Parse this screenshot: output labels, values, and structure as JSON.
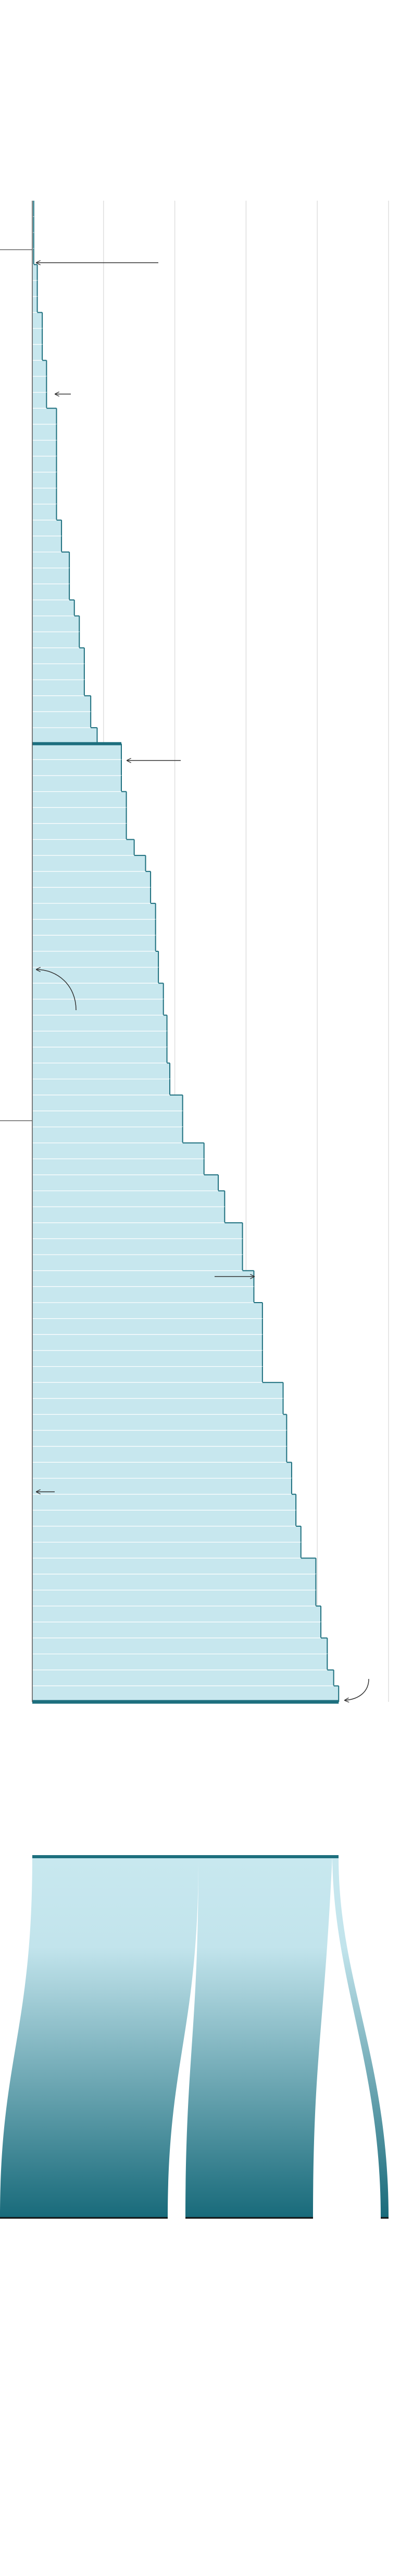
{
  "chart_data": {
    "type": "bar",
    "orientation": "horizontal",
    "values": [
      0.02,
      0.02,
      0.02,
      0.02,
      0.07,
      0.07,
      0.07,
      0.14,
      0.14,
      0.14,
      0.2,
      0.2,
      0.2,
      0.34,
      0.34,
      0.34,
      0.34,
      0.34,
      0.34,
      0.34,
      0.41,
      0.41,
      0.52,
      0.52,
      0.52,
      0.59,
      0.66,
      0.66,
      0.73,
      0.73,
      0.73,
      0.82,
      0.82,
      0.91,
      1.25,
      1.25,
      1.25,
      1.32,
      1.32,
      1.32,
      1.43,
      1.59,
      1.66,
      1.66,
      1.73,
      1.73,
      1.73,
      1.77,
      1.77,
      1.84,
      1.84,
      1.89,
      1.89,
      1.89,
      1.93,
      1.93,
      2.11,
      2.11,
      2.11,
      2.41,
      2.41,
      2.61,
      2.7,
      2.7,
      2.95,
      2.95,
      2.95,
      3.11,
      3.11,
      3.23,
      3.23,
      3.23,
      3.23,
      3.23,
      3.52,
      3.52,
      3.57,
      3.57,
      3.57,
      3.64,
      3.64,
      3.7,
      3.7,
      3.77,
      3.77,
      3.98,
      3.98,
      3.98,
      4.05,
      4.05,
      4.14,
      4.14,
      4.23,
      4.3
    ],
    "color": "#c7e7ee",
    "edge_color": "#1d6f7e",
    "xlim": [
      0,
      5
    ],
    "xticks": [
      1,
      2,
      3,
      4,
      5
    ],
    "grid": true
  }
}
